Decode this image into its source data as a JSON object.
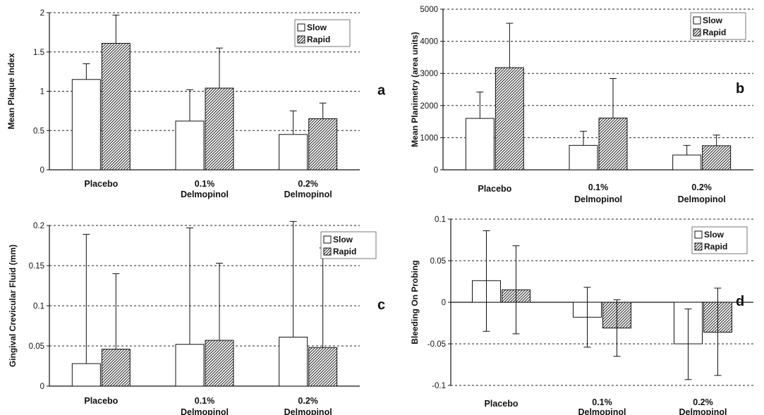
{
  "colors": {
    "slow_fill": "#ffffff",
    "rapid_hatch": "#222222",
    "ink": "#111111"
  },
  "chart_data": [
    {
      "panel_label": "a",
      "type": "bar",
      "categories": [
        [
          "Placebo"
        ],
        [
          "0.1%",
          "Delmopinol"
        ],
        [
          "0.2%",
          "Delmopinol"
        ]
      ],
      "ylabel": "Mean Plaque Index",
      "ylim": [
        0,
        2
      ],
      "yticks": [
        0,
        0.5,
        1,
        1.5,
        2
      ],
      "ytick_labels": [
        "0",
        "0.5",
        "1",
        "1.5",
        "2"
      ],
      "grid": "horizontal dashed",
      "legend": {
        "position": "top-right",
        "entries": [
          "Slow",
          "Rapid"
        ]
      },
      "series": [
        {
          "name": "Slow",
          "values": [
            1.15,
            0.62,
            0.45
          ],
          "err_hi": [
            1.35,
            1.02,
            0.75
          ],
          "err_lo": []
        },
        {
          "name": "Rapid",
          "values": [
            1.61,
            1.04,
            0.65
          ],
          "err_hi": [
            1.97,
            1.55,
            0.85
          ],
          "err_lo": []
        }
      ]
    },
    {
      "panel_label": "b",
      "type": "bar",
      "categories": [
        [
          "Placebo"
        ],
        [
          "0.1%",
          "Delmopinol"
        ],
        [
          "0.2%",
          "Delmopinol"
        ]
      ],
      "ylabel": "Mean Planimetry (area units)",
      "ylim": [
        0,
        5000
      ],
      "yticks": [
        0,
        1000,
        2000,
        3000,
        4000,
        5000
      ],
      "ytick_labels": [
        "0",
        "1000",
        "2000",
        "3000",
        "4000",
        "5000"
      ],
      "grid": "horizontal dashed",
      "legend": {
        "position": "top-right",
        "entries": [
          "Slow",
          "Rapid"
        ]
      },
      "series": [
        {
          "name": "Slow",
          "values": [
            1600,
            760,
            460
          ],
          "err_hi": [
            2420,
            1200,
            760
          ],
          "err_lo": []
        },
        {
          "name": "Rapid",
          "values": [
            3180,
            1610,
            750
          ],
          "err_hi": [
            4560,
            2840,
            1080
          ],
          "err_lo": []
        }
      ]
    },
    {
      "panel_label": "c",
      "type": "bar",
      "categories": [
        [
          "Placebo"
        ],
        [
          "0.1%",
          "Delmopinol"
        ],
        [
          "0.2%",
          "Delmopinol"
        ]
      ],
      "ylabel": "Gingival Crevicular Fluid (mm)",
      "ylim": [
        0,
        0.2
      ],
      "yticks": [
        0,
        0.05,
        0.1,
        0.15,
        0.2
      ],
      "ytick_labels": [
        "0",
        "0.05",
        "0.1",
        "0.15",
        "0.2"
      ],
      "grid": "horizontal dashed",
      "legend": {
        "position": "top-right",
        "entries": [
          "Slow",
          "Rapid"
        ]
      },
      "series": [
        {
          "name": "Slow",
          "values": [
            0.028,
            0.052,
            0.061
          ],
          "err_hi": [
            0.189,
            0.197,
            0.205
          ],
          "err_lo": []
        },
        {
          "name": "Rapid",
          "values": [
            0.046,
            0.057,
            0.048
          ],
          "err_hi": [
            0.14,
            0.153,
            0.172
          ],
          "err_lo": []
        }
      ]
    },
    {
      "panel_label": "d",
      "type": "bar",
      "categories": [
        [
          "Placebo"
        ],
        [
          "0.1%",
          "Delmopinol"
        ],
        [
          "0.2%",
          "Delmopinol"
        ]
      ],
      "ylabel": "Bleeding On Probing",
      "ylim": [
        -0.1,
        0.1
      ],
      "yticks": [
        -0.1,
        -0.05,
        0,
        0.05,
        0.1
      ],
      "ytick_labels": [
        "-0.1",
        "-0.05",
        "0",
        "0.05",
        "0.1"
      ],
      "grid": "horizontal dashed",
      "legend": {
        "position": "top-right",
        "entries": [
          "Slow",
          "Rapid"
        ]
      },
      "series": [
        {
          "name": "Slow",
          "values": [
            0.026,
            -0.018,
            -0.05
          ],
          "err_hi": [
            0.086,
            0.018,
            -0.008
          ],
          "err_lo": [
            -0.035,
            -0.054,
            -0.093
          ]
        },
        {
          "name": "Rapid",
          "values": [
            0.015,
            -0.031,
            -0.036
          ],
          "err_hi": [
            0.068,
            0.003,
            0.017
          ],
          "err_lo": [
            -0.038,
            -0.065,
            -0.088
          ]
        }
      ]
    }
  ]
}
